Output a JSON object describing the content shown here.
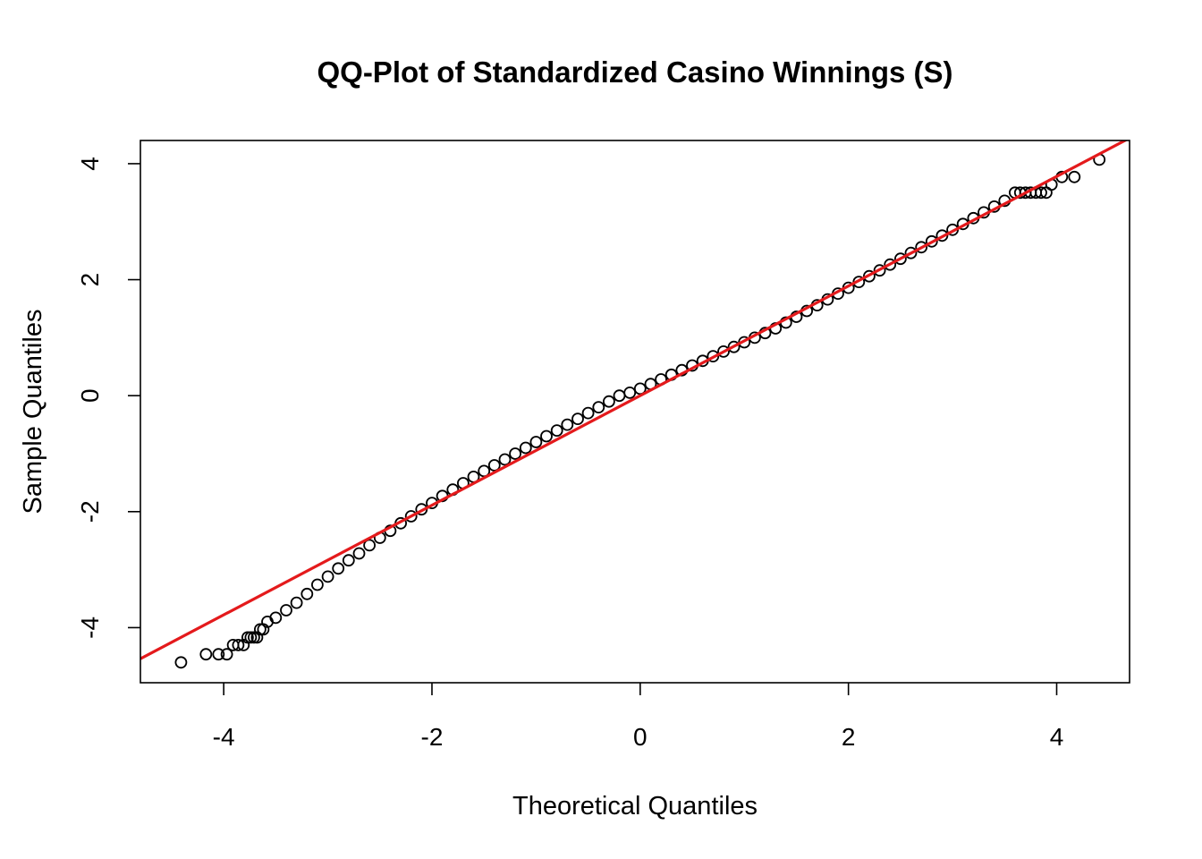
{
  "chart_data": {
    "type": "scatter",
    "title": "QQ-Plot of Standardized Casino Winnings (S)",
    "xlabel": "Theoretical Quantiles",
    "ylabel": "Sample Quantiles",
    "xlim": [
      -4.8,
      4.7
    ],
    "ylim": [
      -4.95,
      4.4
    ],
    "xticks": [
      -4,
      -2,
      0,
      2,
      4
    ],
    "yticks": [
      -4,
      -2,
      0,
      2,
      4
    ],
    "xtick_labels": [
      "-4",
      "-2",
      "0",
      "2",
      "4"
    ],
    "ytick_labels": [
      "-4",
      "-2",
      "0",
      "2",
      "4"
    ],
    "grid": false,
    "legend": false,
    "reference_line": {
      "intercept": 0.0,
      "slope": 0.945,
      "color": "#e41a1c"
    },
    "series": [
      {
        "marker": "open-circle",
        "color": "#000000",
        "x": [
          -4.41,
          -4.17,
          -4.05,
          -3.97,
          -3.91,
          -3.86,
          -3.81,
          -3.77,
          -3.74,
          -3.71,
          -3.68,
          -3.65,
          -3.62,
          -3.58,
          -3.5,
          -3.4,
          -3.3,
          -3.2,
          -3.1,
          -3.0,
          -2.9,
          -2.8,
          -2.7,
          -2.6,
          -2.5,
          -2.4,
          -2.3,
          -2.2,
          -2.1,
          -2.0,
          -1.9,
          -1.8,
          -1.7,
          -1.6,
          -1.5,
          -1.4,
          -1.3,
          -1.2,
          -1.1,
          -1.0,
          -0.9,
          -0.8,
          -0.7,
          -0.6,
          -0.5,
          -0.4,
          -0.3,
          -0.2,
          -0.1,
          0.0,
          0.1,
          0.2,
          0.3,
          0.4,
          0.5,
          0.6,
          0.7,
          0.8,
          0.9,
          1.0,
          1.1,
          1.2,
          1.3,
          1.4,
          1.5,
          1.6,
          1.7,
          1.8,
          1.9,
          2.0,
          2.1,
          2.2,
          2.3,
          2.4,
          2.5,
          2.6,
          2.7,
          2.8,
          2.9,
          3.0,
          3.1,
          3.2,
          3.3,
          3.4,
          3.5,
          3.6,
          3.65,
          3.7,
          3.75,
          3.8,
          3.85,
          3.9,
          3.95,
          4.05,
          4.17,
          4.41
        ],
        "y": [
          -4.6,
          -4.46,
          -4.46,
          -4.46,
          -4.3,
          -4.3,
          -4.3,
          -4.17,
          -4.17,
          -4.17,
          -4.17,
          -4.03,
          -4.03,
          -3.9,
          -3.83,
          -3.7,
          -3.57,
          -3.42,
          -3.26,
          -3.12,
          -2.98,
          -2.84,
          -2.72,
          -2.58,
          -2.45,
          -2.33,
          -2.2,
          -2.08,
          -1.96,
          -1.85,
          -1.73,
          -1.62,
          -1.51,
          -1.4,
          -1.3,
          -1.2,
          -1.1,
          -1.0,
          -0.9,
          -0.8,
          -0.7,
          -0.6,
          -0.5,
          -0.4,
          -0.3,
          -0.2,
          -0.1,
          0.0,
          0.05,
          0.12,
          0.2,
          0.28,
          0.36,
          0.44,
          0.52,
          0.6,
          0.68,
          0.76,
          0.84,
          0.92,
          1.0,
          1.08,
          1.16,
          1.26,
          1.36,
          1.46,
          1.56,
          1.66,
          1.76,
          1.86,
          1.96,
          2.06,
          2.16,
          2.26,
          2.36,
          2.46,
          2.56,
          2.66,
          2.76,
          2.86,
          2.96,
          3.06,
          3.16,
          3.26,
          3.36,
          3.5,
          3.5,
          3.5,
          3.5,
          3.5,
          3.5,
          3.5,
          3.64,
          3.77,
          3.77,
          4.07
        ]
      }
    ]
  }
}
